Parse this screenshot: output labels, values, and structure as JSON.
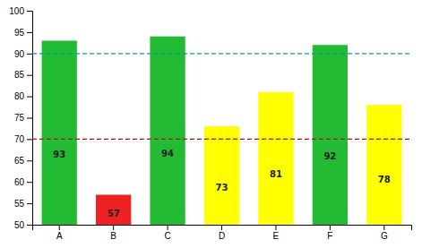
{
  "chart_data": {
    "type": "bar",
    "categories": [
      "A",
      "B",
      "C",
      "D",
      "E",
      "F",
      "G"
    ],
    "values": [
      93,
      57,
      94,
      73,
      81,
      92,
      78
    ],
    "colors": [
      "#22bb33",
      "#ee2222",
      "#22bb33",
      "#ffff00",
      "#ffff00",
      "#22bb33",
      "#ffff00"
    ],
    "reference_lines": [
      {
        "y": 90,
        "color": "#009999"
      },
      {
        "y": 70,
        "color": "#aa1111"
      }
    ],
    "ylim": [
      50,
      100
    ],
    "yticks": [
      50,
      55,
      60,
      65,
      70,
      75,
      80,
      85,
      90,
      95,
      100
    ],
    "grid": false,
    "data_labels": true
  }
}
